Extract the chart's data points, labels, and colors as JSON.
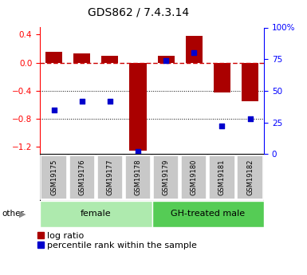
{
  "title": "GDS862 / 7.4.3.14",
  "samples": [
    "GSM19175",
    "GSM19176",
    "GSM19177",
    "GSM19178",
    "GSM19179",
    "GSM19180",
    "GSM19181",
    "GSM19182"
  ],
  "log_ratio": [
    0.15,
    0.13,
    0.1,
    -1.25,
    0.1,
    0.38,
    -0.42,
    -0.55
  ],
  "percentile": [
    35,
    42,
    42,
    2,
    74,
    80,
    22,
    28
  ],
  "ylim_left": [
    -1.3,
    0.5
  ],
  "ylim_right": [
    0,
    100
  ],
  "groups": [
    {
      "label": "female",
      "start": 0,
      "end": 3,
      "color": "#AEEAAE"
    },
    {
      "label": "GH-treated male",
      "start": 4,
      "end": 7,
      "color": "#55CC55"
    }
  ],
  "bar_color": "#AA0000",
  "dot_color": "#0000CC",
  "hline_zero_color": "#CC0000",
  "hline_dotted_color": "black",
  "title_fontsize": 10,
  "axis_fontsize": 8,
  "legend_fontsize": 8,
  "other_label": "other"
}
